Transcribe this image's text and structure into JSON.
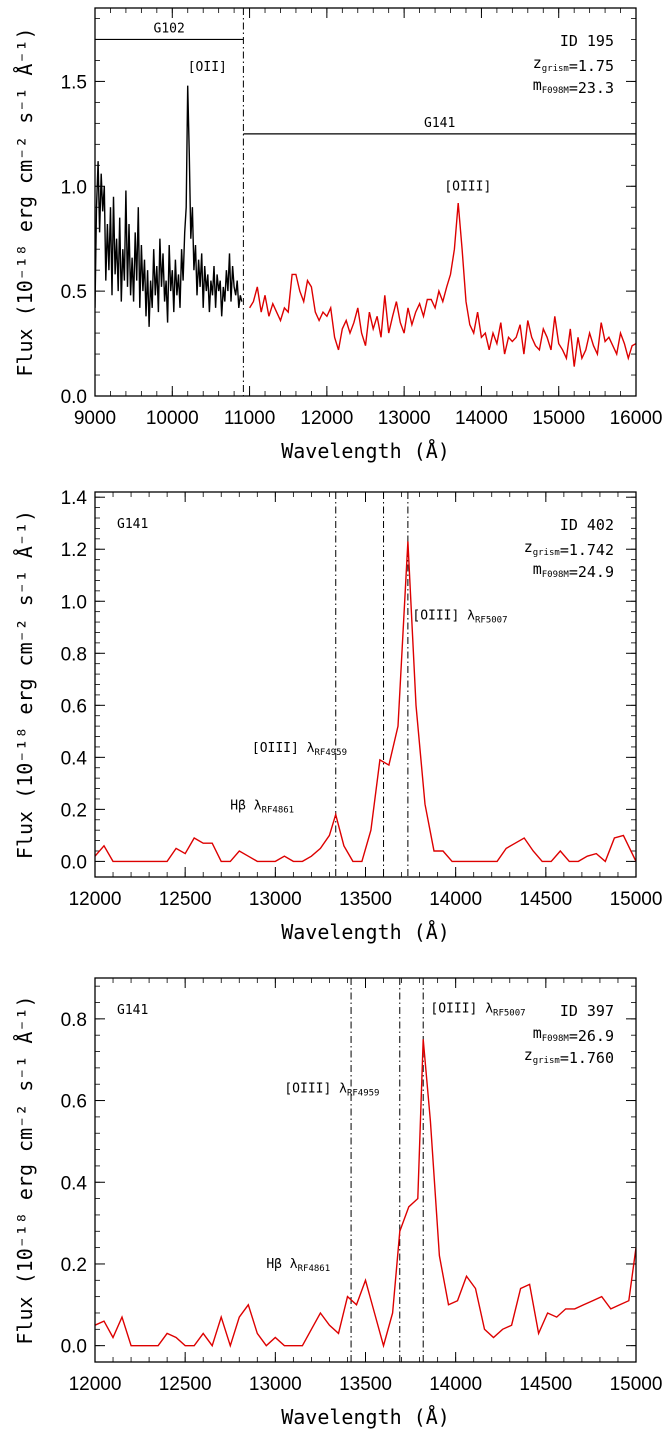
{
  "charts": [
    {
      "type": "line",
      "xlim": [
        9000,
        16000
      ],
      "ylim": [
        0,
        1.85
      ],
      "xticks": [
        9000,
        10000,
        11000,
        12000,
        13000,
        14000,
        15000,
        16000
      ],
      "yticks": [
        0.0,
        0.5,
        1.0,
        1.5
      ],
      "xlabel": "Wavelength (Å)",
      "ylabel": "Flux (10⁻¹⁸ erg cm⁻² s⁻¹ Å⁻¹)",
      "info": [
        "ID 195",
        "z_grism=1.75",
        "m_F098M=23.3"
      ],
      "grisms": [
        {
          "label": "G102",
          "x_range": [
            9000,
            10920
          ],
          "y": 1.7
        },
        {
          "label": "G141",
          "x_range": [
            10920,
            16000
          ],
          "y": 1.25
        }
      ],
      "vlines": [
        10920
      ],
      "annotations": [
        {
          "text": "[OII]",
          "x": 10200,
          "y": 1.55
        },
        {
          "text": "[OIII]",
          "x": 13520,
          "y": 0.98
        }
      ],
      "series": [
        {
          "color": "#000000",
          "x": [
            9000,
            9020,
            9040,
            9060,
            9080,
            9100,
            9120,
            9140,
            9160,
            9180,
            9200,
            9220,
            9240,
            9260,
            9280,
            9300,
            9320,
            9340,
            9360,
            9380,
            9400,
            9420,
            9440,
            9460,
            9480,
            9500,
            9520,
            9540,
            9560,
            9580,
            9600,
            9620,
            9640,
            9660,
            9680,
            9700,
            9720,
            9740,
            9760,
            9780,
            9800,
            9820,
            9840,
            9860,
            9880,
            9900,
            9920,
            9940,
            9960,
            9980,
            10000,
            10020,
            10040,
            10060,
            10080,
            10100,
            10120,
            10140,
            10160,
            10180,
            10200,
            10220,
            10240,
            10260,
            10280,
            10300,
            10320,
            10340,
            10360,
            10380,
            10400,
            10420,
            10440,
            10460,
            10480,
            10500,
            10520,
            10540,
            10560,
            10580,
            10600,
            10620,
            10640,
            10660,
            10680,
            10700,
            10720,
            10740,
            10760,
            10780,
            10800,
            10820,
            10840,
            10860,
            10880,
            10900
          ],
          "y": [
            0.42,
            0.9,
            1.12,
            0.78,
            1.06,
            0.88,
            1.0,
            0.55,
            0.82,
            0.6,
            0.9,
            0.48,
            0.95,
            0.58,
            0.75,
            0.5,
            0.85,
            0.45,
            0.7,
            0.55,
            0.98,
            0.52,
            0.82,
            0.48,
            0.66,
            0.45,
            0.78,
            0.55,
            0.9,
            0.42,
            0.72,
            0.5,
            0.65,
            0.38,
            0.6,
            0.33,
            0.55,
            0.42,
            0.7,
            0.48,
            0.62,
            0.4,
            0.75,
            0.52,
            0.68,
            0.45,
            0.55,
            0.35,
            0.72,
            0.5,
            0.6,
            0.4,
            0.65,
            0.48,
            0.58,
            0.42,
            0.7,
            0.55,
            0.78,
            0.9,
            1.48,
            1.15,
            0.75,
            0.9,
            0.6,
            0.72,
            0.48,
            0.65,
            0.52,
            0.68,
            0.42,
            0.62,
            0.5,
            0.58,
            0.4,
            0.55,
            0.48,
            0.62,
            0.42,
            0.58,
            0.5,
            0.55,
            0.38,
            0.52,
            0.45,
            0.6,
            0.5,
            0.68,
            0.45,
            0.62,
            0.52,
            0.48,
            0.55,
            0.42,
            0.48,
            0.45
          ]
        },
        {
          "color": "#dd0000",
          "x": [
            11000,
            11050,
            11100,
            11150,
            11200,
            11250,
            11300,
            11350,
            11400,
            11450,
            11500,
            11550,
            11600,
            11650,
            11700,
            11750,
            11800,
            11850,
            11900,
            11950,
            12000,
            12050,
            12100,
            12150,
            12200,
            12250,
            12300,
            12350,
            12400,
            12450,
            12500,
            12550,
            12600,
            12650,
            12700,
            12750,
            12800,
            12850,
            12900,
            12950,
            13000,
            13050,
            13100,
            13150,
            13200,
            13250,
            13300,
            13350,
            13400,
            13450,
            13500,
            13550,
            13600,
            13650,
            13700,
            13750,
            13800,
            13850,
            13900,
            13950,
            14000,
            14050,
            14100,
            14150,
            14200,
            14250,
            14300,
            14350,
            14400,
            14450,
            14500,
            14550,
            14600,
            14650,
            14700,
            14750,
            14800,
            14850,
            14900,
            14950,
            15000,
            15050,
            15100,
            15150,
            15200,
            15250,
            15300,
            15350,
            15400,
            15450,
            15500,
            15550,
            15600,
            15650,
            15700,
            15750,
            15800,
            15850,
            15900,
            15950,
            16000
          ],
          "y": [
            0.42,
            0.45,
            0.52,
            0.4,
            0.48,
            0.38,
            0.44,
            0.4,
            0.36,
            0.42,
            0.4,
            0.58,
            0.58,
            0.5,
            0.45,
            0.55,
            0.52,
            0.4,
            0.36,
            0.4,
            0.38,
            0.42,
            0.28,
            0.22,
            0.32,
            0.36,
            0.3,
            0.35,
            0.42,
            0.3,
            0.24,
            0.4,
            0.32,
            0.38,
            0.28,
            0.48,
            0.3,
            0.38,
            0.45,
            0.35,
            0.3,
            0.42,
            0.34,
            0.4,
            0.44,
            0.38,
            0.46,
            0.46,
            0.42,
            0.5,
            0.45,
            0.52,
            0.58,
            0.7,
            0.92,
            0.7,
            0.45,
            0.34,
            0.3,
            0.4,
            0.28,
            0.3,
            0.22,
            0.3,
            0.25,
            0.35,
            0.2,
            0.28,
            0.26,
            0.28,
            0.34,
            0.2,
            0.36,
            0.28,
            0.24,
            0.22,
            0.32,
            0.28,
            0.22,
            0.38,
            0.25,
            0.22,
            0.18,
            0.32,
            0.14,
            0.28,
            0.18,
            0.22,
            0.3,
            0.24,
            0.2,
            0.35,
            0.26,
            0.28,
            0.24,
            0.2,
            0.3,
            0.25,
            0.18,
            0.24,
            0.25
          ]
        }
      ]
    },
    {
      "type": "line",
      "xlim": [
        12000,
        15000
      ],
      "ylim": [
        -0.06,
        1.42
      ],
      "xticks": [
        12000,
        12500,
        13000,
        13500,
        14000,
        14500,
        15000
      ],
      "yticks": [
        0.0,
        0.2,
        0.4,
        0.6,
        0.8,
        1.0,
        1.2,
        1.4
      ],
      "xlabel": "Wavelength (Å)",
      "ylabel": "Flux (10⁻¹⁸ erg cm⁻² s⁻¹ Å⁻¹)",
      "grism_label": "G141",
      "info": [
        "ID 402",
        "z_grism=1.742",
        "m_F098M=24.9"
      ],
      "vlines": [
        13335,
        13600,
        13735
      ],
      "annotations": [
        {
          "text": "Hβ λ_RF4861",
          "x": 12750,
          "y": 0.2
        },
        {
          "text": "[OIII] λ_RF4959",
          "x": 12870,
          "y": 0.42
        },
        {
          "text": "[OIII] λ_RF5007",
          "x": 13760,
          "y": 0.93
        }
      ],
      "series": [
        {
          "color": "#dd0000",
          "x": [
            12000,
            12050,
            12100,
            12150,
            12200,
            12250,
            12300,
            12350,
            12400,
            12450,
            12500,
            12550,
            12600,
            12650,
            12700,
            12750,
            12800,
            12850,
            12900,
            12950,
            13000,
            13050,
            13100,
            13150,
            13200,
            13250,
            13300,
            13335,
            13380,
            13430,
            13480,
            13530,
            13580,
            13630,
            13680,
            13735,
            13780,
            13830,
            13880,
            13930,
            13980,
            14030,
            14080,
            14130,
            14180,
            14230,
            14280,
            14330,
            14380,
            14430,
            14480,
            14530,
            14580,
            14630,
            14680,
            14730,
            14780,
            14830,
            14880,
            14930,
            15000
          ],
          "y": [
            0.02,
            0.06,
            0.0,
            0.0,
            0.0,
            0.0,
            0.0,
            0.0,
            0.0,
            0.05,
            0.03,
            0.09,
            0.07,
            0.07,
            0.0,
            0.0,
            0.04,
            0.02,
            0.0,
            0.0,
            0.0,
            0.02,
            0.0,
            0.0,
            0.02,
            0.05,
            0.1,
            0.18,
            0.06,
            0.0,
            0.0,
            0.12,
            0.39,
            0.37,
            0.52,
            1.23,
            0.6,
            0.22,
            0.04,
            0.04,
            0.0,
            0.0,
            0.0,
            0.0,
            0.0,
            0.0,
            0.05,
            0.07,
            0.09,
            0.04,
            0.0,
            0.0,
            0.04,
            0.0,
            0.0,
            0.02,
            0.03,
            0.0,
            0.09,
            0.1,
            0.0
          ]
        }
      ]
    },
    {
      "type": "line",
      "xlim": [
        12000,
        15000
      ],
      "ylim": [
        -0.04,
        0.9
      ],
      "xticks": [
        12000,
        12500,
        13000,
        13500,
        14000,
        14500,
        15000
      ],
      "yticks": [
        0.0,
        0.2,
        0.4,
        0.6,
        0.8
      ],
      "xlabel": "Wavelength (Å)",
      "ylabel": "Flux (10⁻¹⁸ erg cm⁻² s⁻¹ Å⁻¹)",
      "grism_label": "G141",
      "info": [
        "ID 397",
        "m_F098M=26.9",
        "z_grism=1.760"
      ],
      "vlines": [
        13420,
        13690,
        13820
      ],
      "annotations": [
        {
          "text": "Hβ λ_RF4861",
          "x": 12950,
          "y": 0.19
        },
        {
          "text": "[OIII] λ_RF4959",
          "x": 13050,
          "y": 0.62
        },
        {
          "text": "[OIII] λ_RF5007",
          "x": 13860,
          "y": 0.815
        }
      ],
      "series": [
        {
          "color": "#dd0000",
          "x": [
            12000,
            12050,
            12100,
            12150,
            12200,
            12250,
            12300,
            12350,
            12400,
            12450,
            12500,
            12550,
            12600,
            12650,
            12700,
            12750,
            12800,
            12850,
            12900,
            12950,
            13000,
            13050,
            13100,
            13150,
            13200,
            13250,
            13300,
            13350,
            13400,
            13450,
            13500,
            13550,
            13600,
            13650,
            13690,
            13740,
            13790,
            13820,
            13860,
            13910,
            13960,
            14010,
            14060,
            14110,
            14160,
            14210,
            14260,
            14310,
            14360,
            14410,
            14460,
            14510,
            14560,
            14610,
            14660,
            14710,
            14760,
            14810,
            14860,
            14910,
            14960,
            15000
          ],
          "y": [
            0.05,
            0.06,
            0.02,
            0.07,
            0.0,
            0.0,
            0.0,
            0.0,
            0.03,
            0.02,
            0.0,
            0.0,
            0.03,
            0.0,
            0.07,
            0.0,
            0.07,
            0.1,
            0.03,
            0.0,
            0.02,
            0.0,
            0.0,
            0.0,
            0.04,
            0.08,
            0.05,
            0.03,
            0.12,
            0.1,
            0.16,
            0.08,
            0.0,
            0.08,
            0.28,
            0.34,
            0.36,
            0.75,
            0.55,
            0.22,
            0.1,
            0.11,
            0.17,
            0.14,
            0.04,
            0.02,
            0.04,
            0.05,
            0.14,
            0.15,
            0.03,
            0.08,
            0.07,
            0.09,
            0.09,
            0.1,
            0.11,
            0.12,
            0.09,
            0.1,
            0.11,
            0.24
          ]
        }
      ]
    }
  ]
}
